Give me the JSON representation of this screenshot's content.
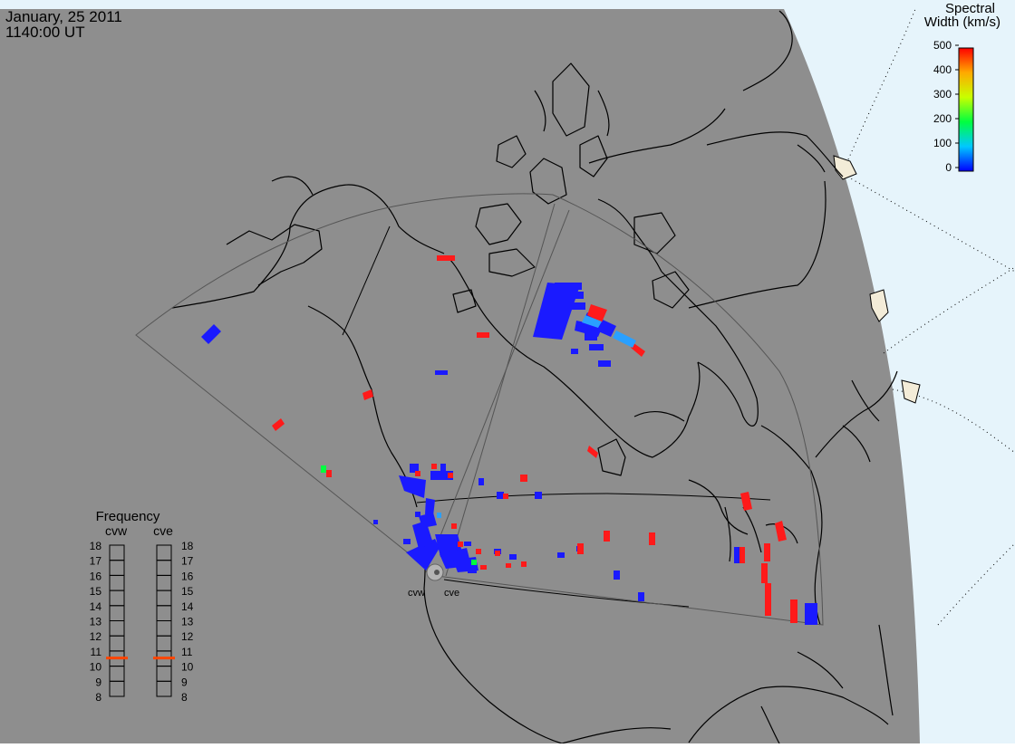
{
  "header": {
    "date": "January, 25 2011",
    "time": "1140:00 UT"
  },
  "colorbar": {
    "title_line1": "Spectral",
    "title_line2": "Width (km/s)",
    "tick_labels": [
      "500",
      "400",
      "300",
      "200",
      "100",
      "0"
    ],
    "min": 0,
    "max": 500,
    "colors": [
      "#0000ff",
      "#00c8ff",
      "#00ff40",
      "#c8ff00",
      "#ffaa00",
      "#ff0000"
    ]
  },
  "radars": [
    {
      "code": "cvw"
    },
    {
      "code": "cve"
    }
  ],
  "frequency_panel": {
    "title": "Frequency",
    "tick_labels": [
      "18",
      "17",
      "16",
      "15",
      "14",
      "13",
      "12",
      "11",
      "10",
      "9",
      "8"
    ],
    "min": 8,
    "max": 18,
    "cvw_value": 10.6,
    "cve_value": 10.6,
    "marker_color": "#ff4400"
  },
  "colors": {
    "land": "#8e8e8e",
    "night_edge_fill": "#e6f4fb",
    "coast": "#000000",
    "fov": "#555555"
  }
}
